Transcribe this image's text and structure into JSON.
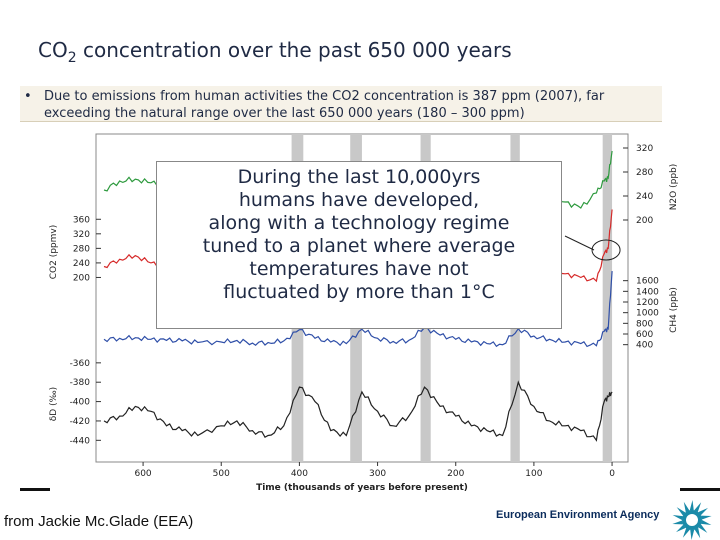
{
  "title": {
    "main": "CO",
    "sub": "2",
    "rest": " concentration over the past 650 000 years"
  },
  "bullet": {
    "symbol": "•",
    "text": "Due to emissions from human activities the CO2 concentration is 387 ppm (2007), far\nexceeding the natural range over the last 650 000 years (180 – 300 ppm)"
  },
  "overlay": {
    "lines": [
      "During the last 10,000yrs",
      "humans have developed,",
      "along with a technology regime",
      "tuned to a planet where average",
      "temperatures have not",
      "fluctuated by more than 1°C"
    ]
  },
  "credit": "from Jackie Mc.Glade (EEA)",
  "agency": "European Environment Agency",
  "colors": {
    "n2o": "#2e9a3e",
    "co2": "#d62a2a",
    "ch4": "#2f4fa8",
    "dd": "#222222",
    "band": "#c8c8c8",
    "text": "#1f2a44"
  },
  "chart_data": {
    "type": "line",
    "xlabel": "Time (thousands of years before present)",
    "xlim": [
      650,
      0
    ],
    "x_ticks": [
      600,
      500,
      400,
      300,
      200,
      100,
      0
    ],
    "interglacial_bands": [
      [
        410,
        395
      ],
      [
        335,
        320
      ],
      [
        245,
        232
      ],
      [
        130,
        118
      ],
      [
        12,
        0
      ]
    ],
    "series": [
      {
        "name": "N2O",
        "ylabel": "N2O (ppb)",
        "axis": "right",
        "ylim": [
          180,
          330
        ],
        "ticks": [
          200,
          240,
          280,
          320
        ],
        "x": [
          650,
          630,
          610,
          590,
          570,
          550,
          530,
          500,
          480,
          460,
          440,
          420,
          400,
          380,
          360,
          340,
          320,
          300,
          280,
          260,
          240,
          220,
          200,
          180,
          160,
          140,
          120,
          100,
          80,
          60,
          40,
          20,
          10,
          5,
          0
        ],
        "y": [
          250,
          265,
          268,
          262,
          260,
          255,
          240,
          245,
          250,
          240,
          240,
          250,
          285,
          260,
          245,
          240,
          275,
          250,
          240,
          245,
          270,
          255,
          240,
          235,
          230,
          230,
          275,
          250,
          240,
          230,
          220,
          245,
          265,
          270,
          315
        ]
      },
      {
        "name": "CO2",
        "ylabel": "CO2 (ppmv)",
        "axis": "left",
        "ylim": [
          160,
          380
        ],
        "ticks": [
          200,
          240,
          280,
          320,
          360
        ],
        "x": [
          650,
          630,
          610,
          590,
          570,
          550,
          530,
          500,
          480,
          460,
          440,
          420,
          400,
          380,
          360,
          340,
          320,
          300,
          280,
          260,
          240,
          220,
          200,
          180,
          160,
          140,
          120,
          100,
          80,
          60,
          40,
          20,
          10,
          5,
          0
        ],
        "y": [
          230,
          250,
          260,
          240,
          230,
          235,
          210,
          215,
          230,
          200,
          205,
          220,
          285,
          250,
          200,
          190,
          280,
          240,
          205,
          215,
          275,
          240,
          225,
          210,
          195,
          190,
          285,
          240,
          225,
          210,
          200,
          190,
          265,
          280,
          387
        ]
      },
      {
        "name": "CH4",
        "ylabel": "CH4 (ppb)",
        "axis": "right",
        "ylim": [
          300,
          1800
        ],
        "ticks": [
          400,
          600,
          800,
          1000,
          1200,
          1400,
          1600
        ],
        "x": [
          650,
          630,
          610,
          590,
          570,
          550,
          530,
          500,
          480,
          460,
          440,
          420,
          400,
          380,
          360,
          340,
          320,
          300,
          280,
          260,
          240,
          220,
          200,
          180,
          160,
          140,
          120,
          100,
          80,
          60,
          40,
          20,
          10,
          5,
          0
        ],
        "y": [
          500,
          520,
          530,
          500,
          480,
          470,
          440,
          450,
          480,
          430,
          440,
          470,
          680,
          520,
          450,
          420,
          690,
          520,
          460,
          480,
          720,
          580,
          500,
          450,
          420,
          400,
          700,
          560,
          500,
          450,
          420,
          380,
          650,
          700,
          1780
        ]
      },
      {
        "name": "δD",
        "ylabel": "δD (‰)",
        "axis": "left",
        "ylim": [
          -450,
          -355
        ],
        "ticks": [
          -440,
          -420,
          -400,
          -380,
          -360
        ],
        "x": [
          650,
          630,
          610,
          590,
          570,
          550,
          530,
          500,
          480,
          460,
          440,
          420,
          400,
          380,
          360,
          340,
          320,
          300,
          280,
          260,
          240,
          220,
          200,
          180,
          160,
          140,
          120,
          100,
          80,
          60,
          40,
          20,
          10,
          5,
          0
        ],
        "y": [
          -420,
          -415,
          -405,
          -410,
          -425,
          -430,
          -435,
          -425,
          -420,
          -430,
          -435,
          -425,
          -385,
          -400,
          -430,
          -435,
          -390,
          -410,
          -425,
          -415,
          -385,
          -405,
          -415,
          -425,
          -430,
          -435,
          -380,
          -405,
          -420,
          -425,
          -430,
          -440,
          -400,
          -395,
          -390
        ]
      }
    ]
  }
}
